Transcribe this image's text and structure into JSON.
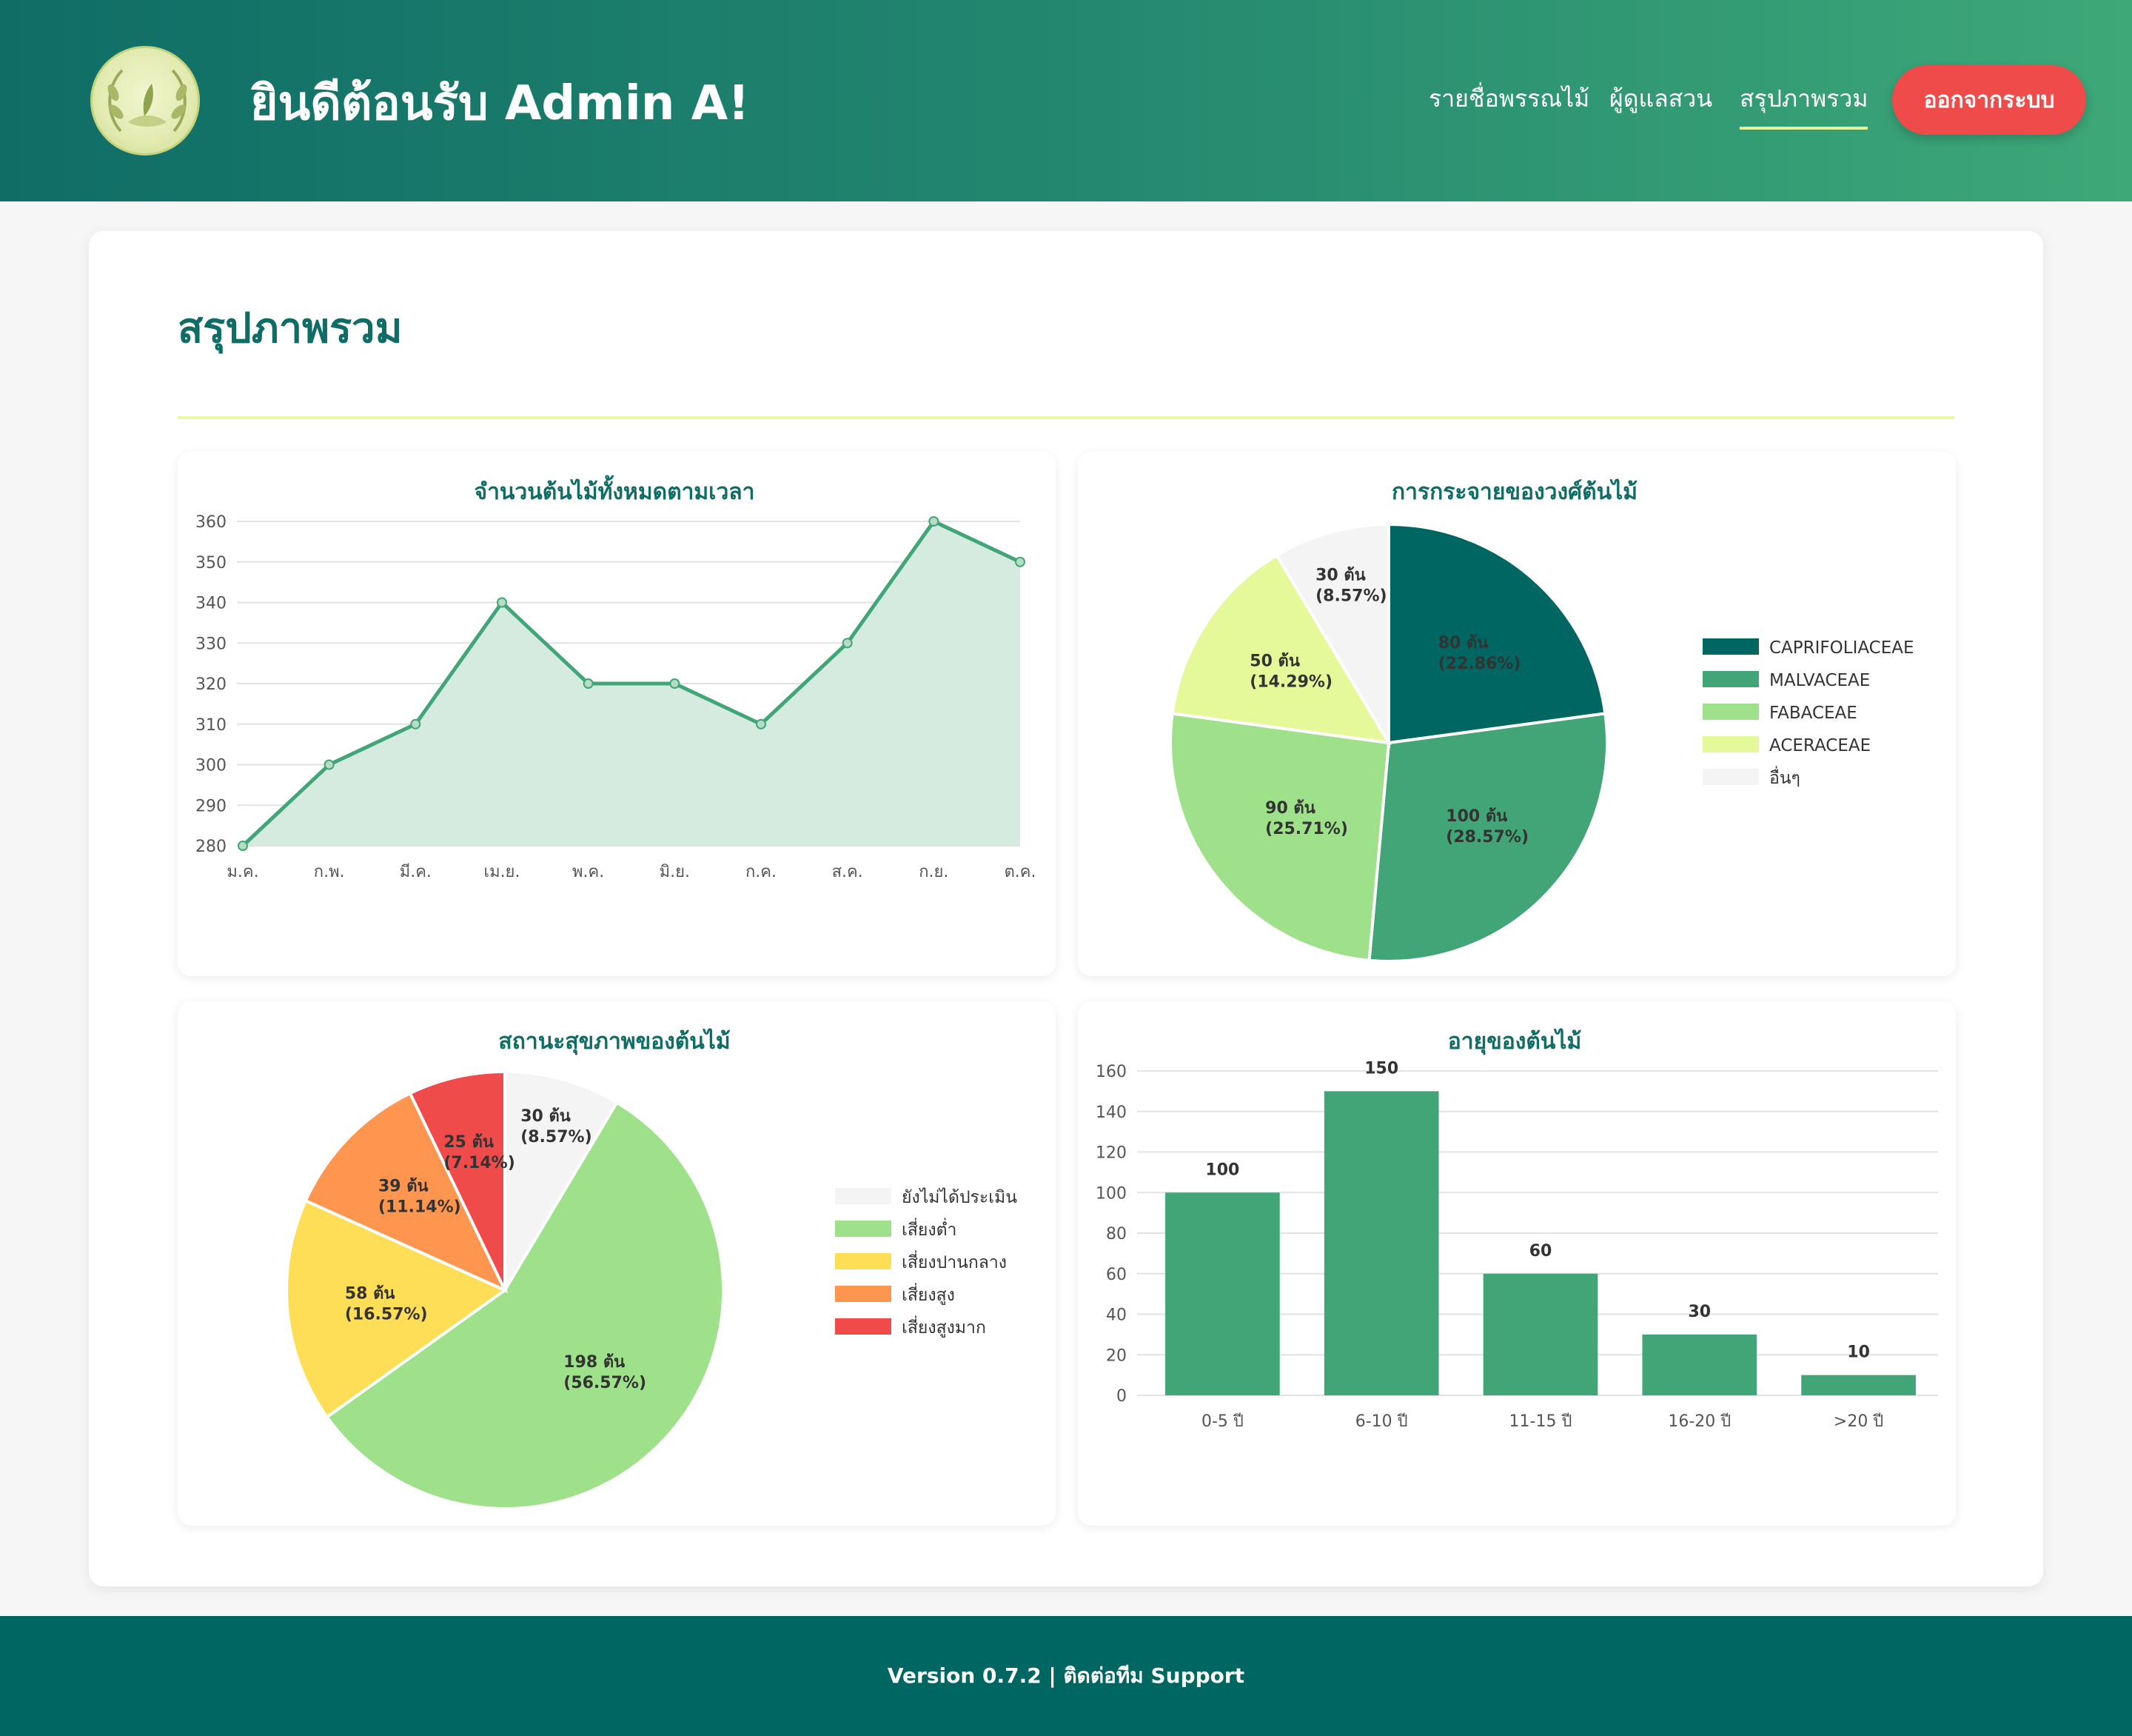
{
  "header": {
    "welcome": "ยินดีต้อนรับ Admin A!",
    "nav": [
      "รายชื่อพรรณไม้",
      "ผู้ดูแลสวน",
      "สรุปภาพรวม"
    ],
    "logout": "ออกจากระบบ"
  },
  "page": {
    "title": "สรุปภาพรวม"
  },
  "chart_data": [
    {
      "type": "area",
      "title": "จำนวนต้นไม้ทั้งหมดตามเวลา",
      "categories": [
        "ม.ค.",
        "ก.พ.",
        "มี.ค.",
        "เม.ย.",
        "พ.ค.",
        "มิ.ย.",
        "ก.ค.",
        "ส.ค.",
        "ก.ย.",
        "ต.ค."
      ],
      "values": [
        280,
        300,
        310,
        340,
        320,
        320,
        310,
        330,
        360,
        350
      ],
      "ylim": [
        280,
        360
      ],
      "yticks": [
        280,
        290,
        300,
        310,
        320,
        330,
        340,
        350,
        360
      ],
      "color": "#41a577",
      "fill": "#d6ebdf",
      "grid": true
    },
    {
      "type": "pie",
      "title": "การกระจายของวงศ์ต้นไม้",
      "labels": [
        "CAPRIFOLIACEAE",
        "MALVACEAE",
        "FABACEAE",
        "ACERACEAE",
        "อื่นๆ"
      ],
      "values": [
        80,
        100,
        90,
        50,
        30
      ],
      "slice_labels": [
        "80 ต้น\n(22.86%)",
        "100 ต้น\n(28.57%)",
        "90 ต้น\n(25.71%)",
        "50 ต้น\n(14.29%)",
        "30 ต้น\n(8.57%)"
      ],
      "colors": [
        "#006662",
        "#41a577",
        "#9fe18a",
        "#e6f99a",
        "#f4f4f4"
      ],
      "legend_position": "right"
    },
    {
      "type": "pie",
      "title": "สถานะสุขภาพของต้นไม้",
      "labels": [
        "ยังไม่ได้ประเมิน",
        "เสี่ยงต่ำ",
        "เสี่ยงปานกลาง",
        "เสี่ยงสูง",
        "เสี่ยงสูงมาก"
      ],
      "values": [
        30,
        198,
        58,
        39,
        25
      ],
      "slice_labels": [
        "30 ต้น\n(8.57%)",
        "198 ต้น\n(56.57%)",
        "58 ต้น\n(16.57%)",
        "39 ต้น\n(11.14%)",
        "25 ต้น\n(7.14%)"
      ],
      "colors": [
        "#f4f4f4",
        "#9fe18a",
        "#ffde57",
        "#ff964f",
        "#f04b4b"
      ],
      "legend_position": "right"
    },
    {
      "type": "bar",
      "title": "อายุของต้นไม้",
      "categories": [
        "0-5 ปี",
        "6-10 ปี",
        "11-15 ปี",
        "16-20 ปี",
        ">20 ปี"
      ],
      "values": [
        100,
        150,
        60,
        30,
        10
      ],
      "ylim": [
        0,
        160
      ],
      "yticks": [
        0,
        20,
        40,
        60,
        80,
        100,
        120,
        140,
        160
      ],
      "color": "#41a577",
      "grid": true
    }
  ],
  "footer": {
    "text": "Version 0.7.2 | ติดต่อทีม Support"
  }
}
